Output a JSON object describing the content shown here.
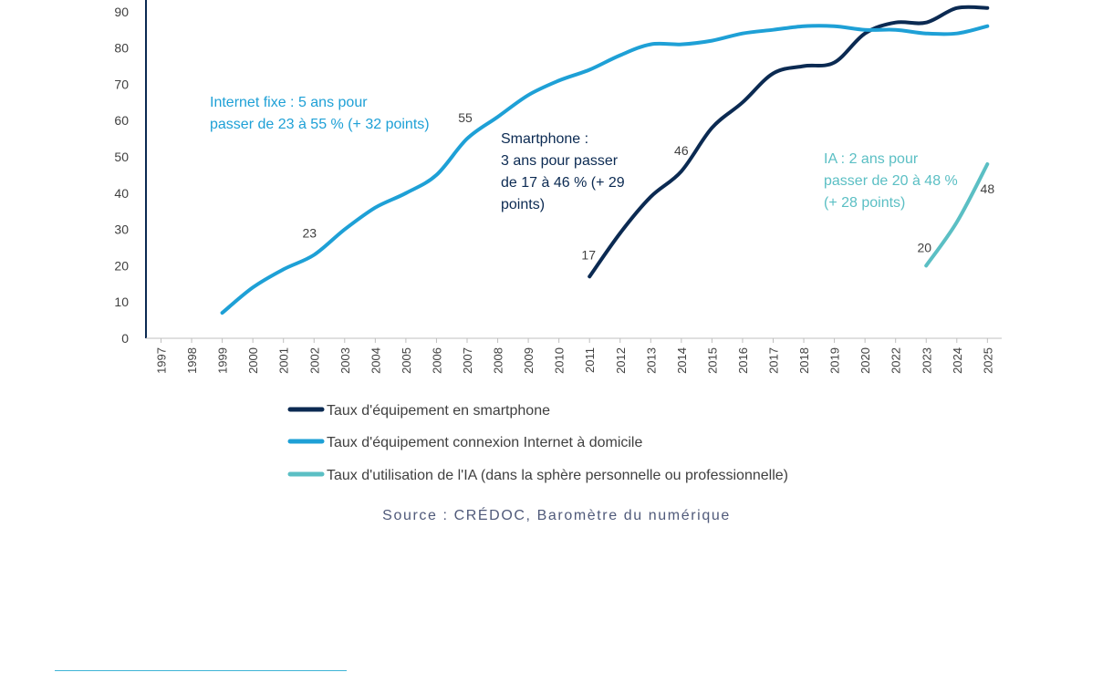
{
  "chart_data": {
    "type": "line",
    "title": "",
    "xlabel": "",
    "ylabel": "",
    "ylim": [
      0,
      90
    ],
    "yticks": [
      0,
      10,
      20,
      30,
      40,
      50,
      60,
      70,
      80,
      90
    ],
    "categories": [
      "1997",
      "1998",
      "1999",
      "2000",
      "2001",
      "2002",
      "2003",
      "2004",
      "2005",
      "2006",
      "2007",
      "2008",
      "2009",
      "2010",
      "2011",
      "2012",
      "2013",
      "2014",
      "2015",
      "2016",
      "2017",
      "2018",
      "2019",
      "2020",
      "2022",
      "2023",
      "2024",
      "2025"
    ],
    "grid": false,
    "legend_position": "bottom",
    "series": [
      {
        "name": "Taux d'équipement en smartphone",
        "color": "#0b2a52",
        "values": [
          null,
          null,
          null,
          null,
          null,
          null,
          null,
          null,
          null,
          null,
          null,
          null,
          null,
          null,
          17,
          29,
          39,
          46,
          58,
          65,
          73,
          75,
          76,
          84,
          87,
          87,
          91,
          91
        ]
      },
      {
        "name": "Taux d'équipement connexion Internet à domicile",
        "color": "#1ea0d6",
        "values": [
          null,
          null,
          7,
          14,
          19,
          23,
          30,
          36,
          40,
          45,
          55,
          61,
          67,
          71,
          74,
          78,
          81,
          81,
          82,
          84,
          85,
          86,
          86,
          85,
          85,
          84,
          84,
          86
        ]
      },
      {
        "name": "Taux d'utilisation de l'IA (dans la sphère personnelle ou professionnelle)",
        "color": "#5bbfc4",
        "values": [
          null,
          null,
          null,
          null,
          null,
          null,
          null,
          null,
          null,
          null,
          null,
          null,
          null,
          null,
          null,
          null,
          null,
          null,
          null,
          null,
          null,
          null,
          null,
          null,
          null,
          20,
          32,
          48
        ]
      }
    ],
    "data_labels": [
      {
        "category": "2002",
        "value": 23,
        "text": "23",
        "series": 1
      },
      {
        "category": "2007",
        "value": 55,
        "text": "55",
        "series": 1
      },
      {
        "category": "2011",
        "value": 17,
        "text": "17",
        "series": 0
      },
      {
        "category": "2014",
        "value": 46,
        "text": "46",
        "series": 0
      },
      {
        "category": "2023",
        "value": 20,
        "text": "20",
        "series": 2
      },
      {
        "category": "2025",
        "value": 48,
        "text": "48",
        "series": 2
      }
    ],
    "annotations": [
      {
        "lines": [
          "Internet fixe : 5 ans pour",
          "passer de 23 à 55 % (+ 32 points)"
        ],
        "color": "#1ea0d6"
      },
      {
        "lines": [
          "Smartphone :",
          "3 ans pour passer",
          "de 17 à 46 % (+ 29",
          "points)"
        ],
        "color": "#0b2a52"
      },
      {
        "lines": [
          "IA : 2 ans pour",
          "passer de 20 à 48 %",
          "(+ 28 points)"
        ],
        "color": "#5bbfc4"
      }
    ]
  },
  "source": "Source : CRÉDOC, Baromètre du numérique"
}
